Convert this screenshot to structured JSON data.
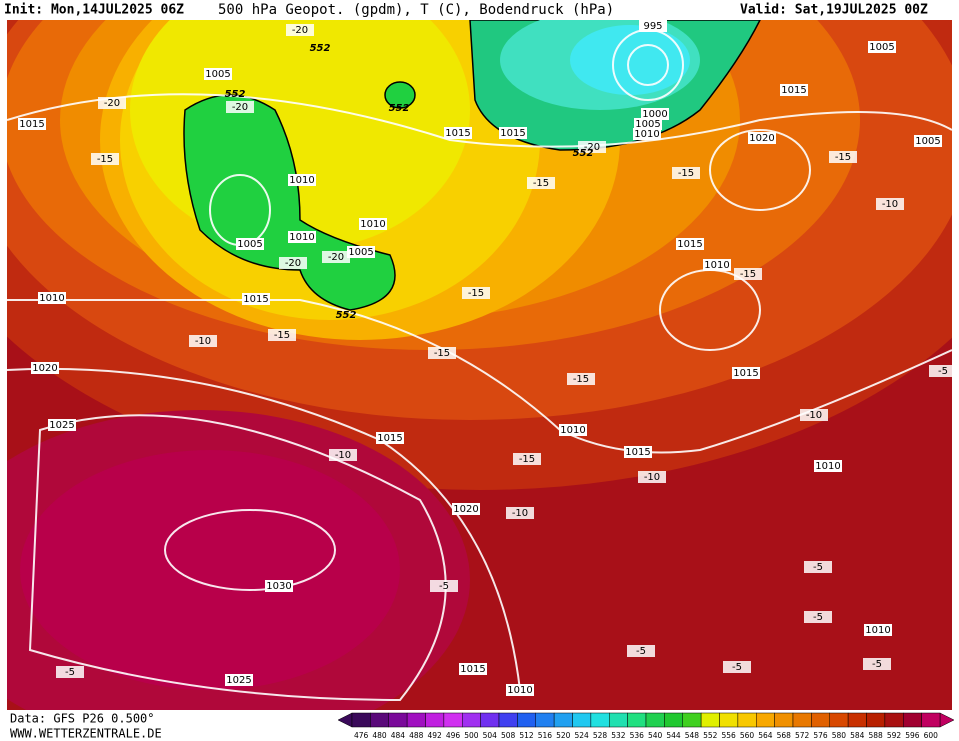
{
  "header": {
    "init": "Init: Mon,14JUL2025 06Z",
    "title": "500 hPa Geopot. (gpdm), T (C), Bodendruck (hPa)",
    "valid": "Valid: Sat,19JUL2025 00Z"
  },
  "map": {
    "pressure_labels": [
      "1015",
      "1005",
      "1005",
      "1010",
      "1010",
      "1005",
      "1010",
      "1015",
      "1015",
      "995",
      "1000",
      "1005",
      "1010",
      "1005",
      "1015",
      "1020",
      "1005",
      "1015",
      "1010",
      "1015",
      "1010",
      "1020",
      "1025",
      "1015",
      "1010",
      "1015",
      "1020",
      "1030",
      "1025",
      "1015",
      "1010",
      "1010",
      "1010",
      "1015"
    ],
    "temperature_labels": [
      "-20",
      "-20",
      "-20",
      "-15",
      "-20",
      "-20",
      "-20",
      "-15",
      "-15",
      "-15",
      "-10",
      "-15",
      "-15",
      "-15",
      "-10",
      "-15",
      "-15",
      "-10",
      "-10",
      "-15",
      "-10",
      "-10",
      "-5",
      "-5",
      "-5",
      "-5",
      "-5",
      "-5",
      "-5",
      "-5"
    ],
    "geopotential_labels": [
      "552",
      "552",
      "552",
      "552",
      "552"
    ]
  },
  "colorbar": {
    "labels": [
      476,
      480,
      484,
      488,
      492,
      496,
      500,
      504,
      508,
      512,
      516,
      520,
      524,
      528,
      532,
      536,
      540,
      544,
      548,
      552,
      556,
      560,
      564,
      568,
      572,
      576,
      580,
      584,
      588,
      592,
      596,
      600
    ],
    "colors": [
      "#3a0a5a",
      "#5a0a7a",
      "#7a0a9a",
      "#a010c0",
      "#c020e0",
      "#d030f0",
      "#a030f0",
      "#7030f0",
      "#4040f0",
      "#2060f0",
      "#2080f0",
      "#20a0f0",
      "#20c8f0",
      "#20e0e0",
      "#20e0b0",
      "#20e080",
      "#20d050",
      "#20c830",
      "#40d020",
      "#e0f000",
      "#f0e000",
      "#f8c800",
      "#f8a800",
      "#f09000",
      "#e87800",
      "#e06000",
      "#d84800",
      "#c83000",
      "#b82000",
      "#a81010",
      "#a00030",
      "#c00060"
    ]
  },
  "footer": {
    "data": "Data: GFS P26 0.500°",
    "source": "WWW.WETTERZENTRALE.DE"
  }
}
